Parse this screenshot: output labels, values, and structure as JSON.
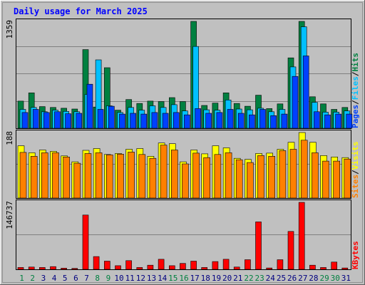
{
  "chart_data": {
    "type": "bar",
    "title": "Daily usage for March 2025",
    "categories": [
      "1",
      "2",
      "3",
      "4",
      "5",
      "6",
      "7",
      "8",
      "9",
      "10",
      "11",
      "12",
      "13",
      "14",
      "15",
      "16",
      "17",
      "18",
      "19",
      "20",
      "21",
      "22",
      "23",
      "24",
      "25",
      "26",
      "27",
      "28",
      "29",
      "30",
      "31"
    ],
    "weekend_days": [
      "1",
      "2",
      "8",
      "9",
      "15",
      "16",
      "22",
      "23",
      "29",
      "30"
    ],
    "panels": [
      {
        "id": "hits",
        "max_label": "1359",
        "ymax": 1359,
        "legend": [
          "Pages",
          "Files",
          "Hits"
        ],
        "separator": "/",
        "series": [
          {
            "name": "Hits",
            "color": "#008040",
            "values": [
              345,
              450,
              275,
              265,
              255,
              245,
              1000,
              270,
              770,
              230,
              365,
              315,
              345,
              340,
              390,
              340,
              1359,
              290,
              320,
              450,
              315,
              280,
              420,
              250,
              310,
              895,
              1359,
              400,
              310,
              240,
              265
            ]
          },
          {
            "name": "Files",
            "color": "#00c0ff",
            "values": [
              240,
              265,
              210,
              230,
              215,
              210,
              430,
              870,
              285,
              200,
              265,
              230,
              285,
              265,
              300,
              220,
              1040,
              235,
              230,
              360,
              245,
              235,
              255,
              210,
              240,
              780,
              1290,
              330,
              205,
              205,
              220
            ]
          },
          {
            "name": "Pages",
            "color": "#0040ff",
            "values": [
              200,
              240,
              200,
              210,
              185,
              190,
              560,
              240,
              280,
              180,
              190,
              180,
              200,
              190,
              200,
              170,
              250,
              190,
              200,
              240,
              190,
              170,
              240,
              160,
              180,
              660,
              920,
              210,
              170,
              180,
              180
            ]
          }
        ]
      },
      {
        "id": "visits",
        "max_label": "188",
        "ymax": 188,
        "legend": [
          "Sites",
          "Visits"
        ],
        "separator": "/",
        "series": [
          {
            "name": "Visits",
            "color": "#ffff00",
            "values": [
              150,
              130,
              138,
              134,
              121,
              104,
              137,
              142,
              125,
              128,
              140,
              142,
              120,
              158,
              156,
              104,
              138,
              127,
              150,
              144,
              114,
              111,
              128,
              129,
              140,
              160,
              188,
              160,
              122,
              118,
              116
            ]
          },
          {
            "name": "Sites",
            "color": "#ff8000",
            "values": [
              131,
              120,
              130,
              130,
              118,
              100,
              128,
              130,
              124,
              126,
              132,
              125,
              114,
              152,
              138,
              98,
              129,
              116,
              125,
              130,
              110,
              102,
              122,
              120,
              136,
              140,
              166,
              130,
              106,
              106,
              112
            ]
          }
        ]
      },
      {
        "id": "kbytes",
        "max_label": "146737",
        "ymax": 146737,
        "legend": [
          "KBytes"
        ],
        "separator": "",
        "series": [
          {
            "name": "KBytes",
            "color": "#ff0000",
            "values": [
              4000,
              5000,
              4000,
              6000,
              2500,
              2000,
              119000,
              28000,
              18000,
              8000,
              19000,
              4000,
              9000,
              22000,
              8000,
              13000,
              18000,
              4000,
              17000,
              22000,
              5000,
              21000,
              104000,
              3000,
              21000,
              83000,
              146737,
              9000,
              4000,
              16000,
              3000
            ]
          }
        ]
      }
    ],
    "colors": {
      "background": "#c0c0c0",
      "title": "#0000ff",
      "axis_label": "#000000",
      "weekday_label": "#000080",
      "weekend_label": "#008040",
      "grid": "#808080",
      "separator": "#000000"
    }
  }
}
